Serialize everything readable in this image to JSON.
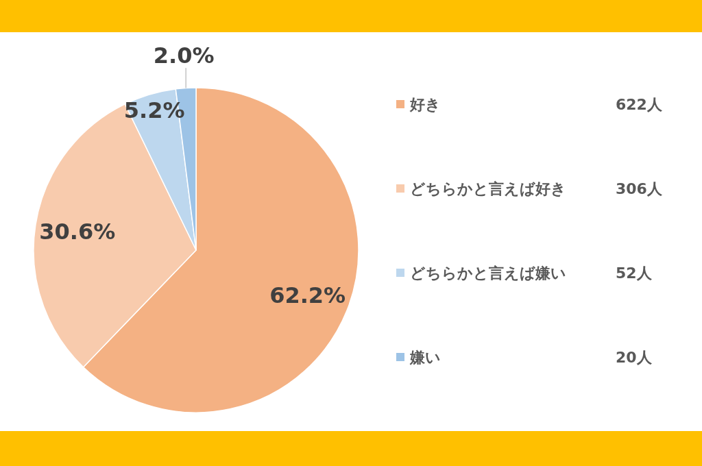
{
  "chart_data": {
    "type": "pie",
    "categories": [
      "好き",
      "どちらかと言えば好き",
      "どちらかと言えば嫌い",
      "嫌い"
    ],
    "values": [
      62.2,
      30.6,
      5.2,
      2.0
    ],
    "colors": [
      "#f4b183",
      "#f8cbad",
      "#bdd7ee",
      "#9dc3e6"
    ],
    "value_labels": [
      "62.2%",
      "30.6%",
      "5.2%",
      "2.0%"
    ],
    "annotations": [
      "622人",
      "306人",
      "52人",
      "20人"
    ],
    "legend": "right"
  }
}
